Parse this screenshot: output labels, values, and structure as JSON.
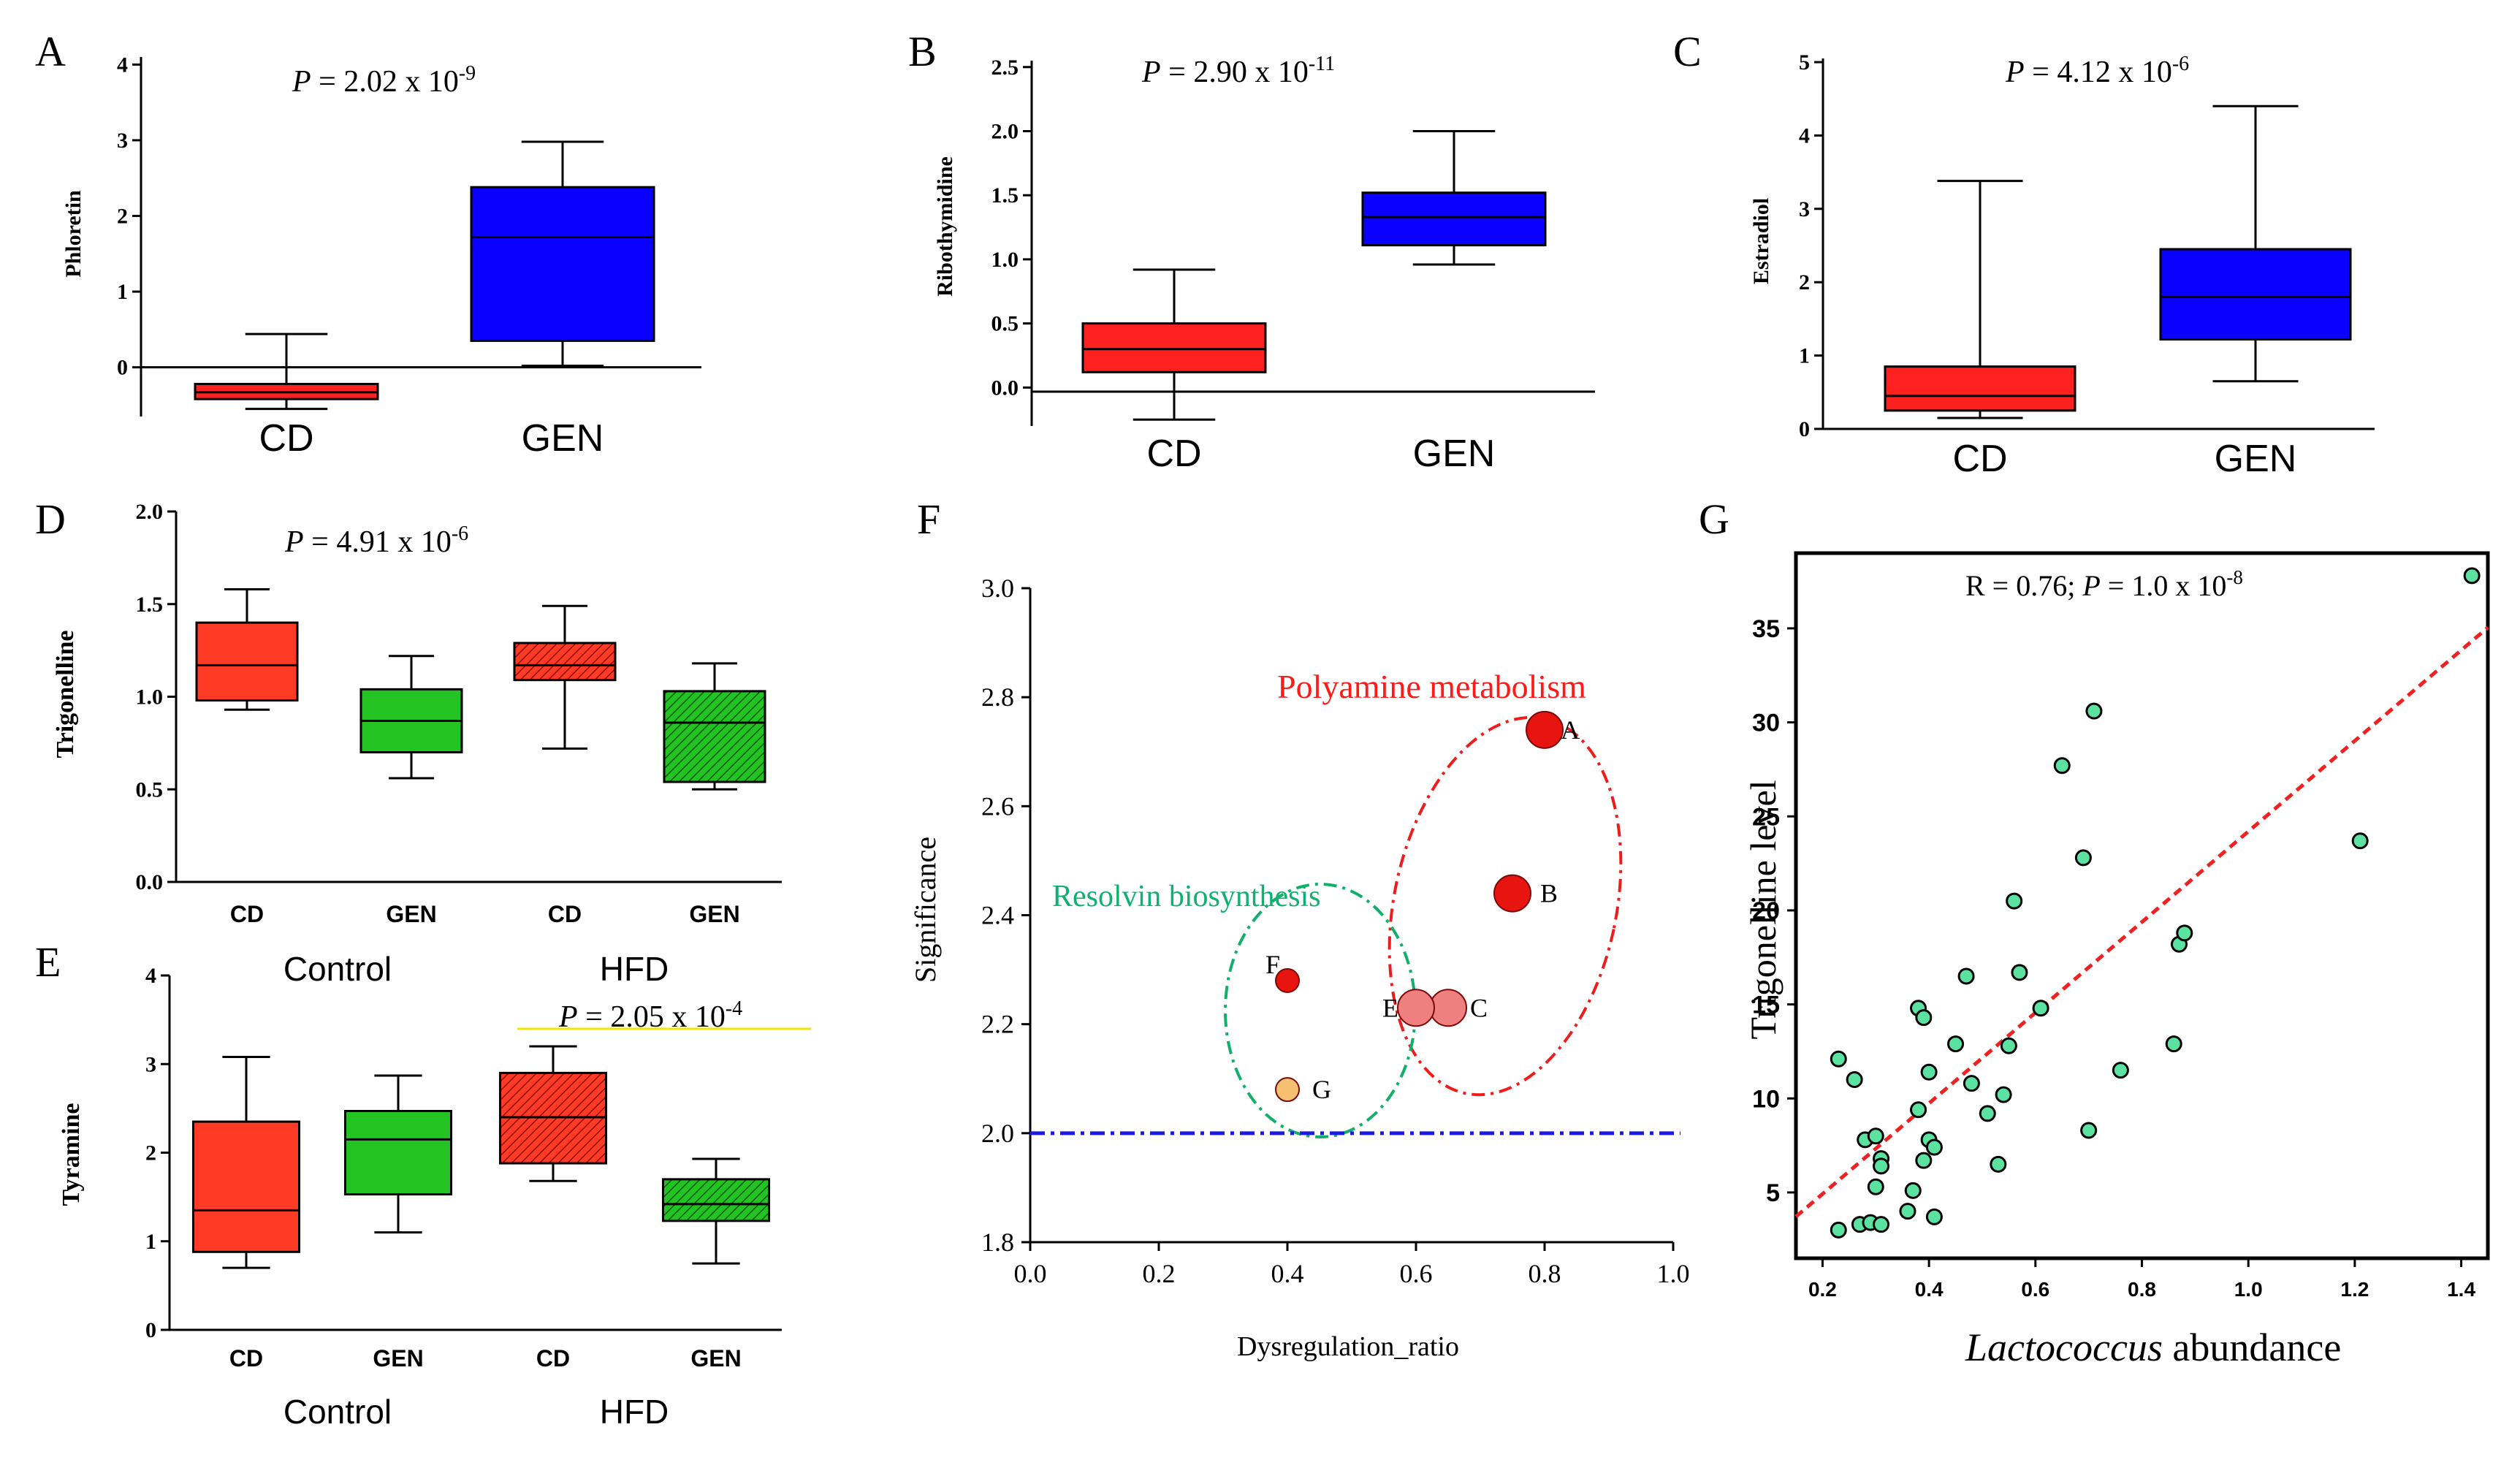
{
  "chart_data": [
    {
      "panel": "A",
      "type": "box",
      "ylabel": "Phloretin",
      "pvalue": {
        "prefix": "P",
        "text": " = 2.02 x 10",
        "exp": "-9"
      },
      "ylim": [
        -0.65,
        4.1
      ],
      "yticks": [
        0,
        1,
        2,
        3,
        4
      ],
      "categories": [
        "CD",
        "GEN"
      ],
      "boxes": [
        {
          "min": -0.55,
          "q1": -0.42,
          "median": -0.33,
          "q3": -0.22,
          "max": 0.44,
          "color": "#ff2020"
        },
        {
          "min": 0.02,
          "q1": 0.35,
          "median": 1.72,
          "q3": 2.38,
          "max": 2.98,
          "color": "#0a00ff"
        }
      ]
    },
    {
      "panel": "B",
      "type": "box",
      "ylabel": "Ribothymidine",
      "pvalue": {
        "prefix": "P",
        "text": " = 2.90 x 10",
        "exp": "-11"
      },
      "ylim": [
        -0.3,
        2.55
      ],
      "yticks": [
        0.0,
        0.5,
        1.0,
        1.5,
        2.0,
        2.5
      ],
      "tickDecimals": 1,
      "categories": [
        "CD",
        "GEN"
      ],
      "boxes": [
        {
          "min": -0.25,
          "q1": 0.12,
          "median": 0.3,
          "q3": 0.5,
          "max": 0.92,
          "color": "#ff2020"
        },
        {
          "min": 0.96,
          "q1": 1.11,
          "median": 1.33,
          "q3": 1.52,
          "max": 2.0,
          "color": "#0a00ff"
        }
      ]
    },
    {
      "panel": "C",
      "type": "box",
      "ylabel": "Estradiol",
      "pvalue": {
        "prefix": "P",
        "text": " = 4.12 x 10",
        "exp": "-6"
      },
      "ylim": [
        0,
        5.05
      ],
      "yticks": [
        0,
        1,
        2,
        3,
        4,
        5
      ],
      "categories": [
        "CD",
        "GEN"
      ],
      "boxes": [
        {
          "min": 0.15,
          "q1": 0.25,
          "median": 0.45,
          "q3": 0.85,
          "max": 3.38,
          "color": "#ff2020"
        },
        {
          "min": 0.65,
          "q1": 1.22,
          "median": 1.8,
          "q3": 2.45,
          "max": 4.4,
          "color": "#0a00ff"
        }
      ]
    },
    {
      "panel": "D",
      "type": "box",
      "ylabel": "Trigonelline",
      "pvalue": {
        "prefix": "P",
        "text": " = 4.91 x 10",
        "exp": "-6"
      },
      "ylim": [
        0,
        2.0
      ],
      "yticks": [
        0.0,
        0.5,
        1.0,
        1.5,
        2.0
      ],
      "tickDecimals": 1,
      "categories": [
        "CD",
        "GEN",
        "CD",
        "GEN"
      ],
      "groups": [
        "Control",
        "HFD"
      ],
      "boxes": [
        {
          "min": 0.93,
          "q1": 0.98,
          "median": 1.17,
          "q3": 1.4,
          "max": 1.58,
          "color": "#ff3b25",
          "hatch": false
        },
        {
          "min": 0.56,
          "q1": 0.7,
          "median": 0.87,
          "q3": 1.04,
          "max": 1.22,
          "color": "#22c322",
          "hatch": false
        },
        {
          "min": 0.72,
          "q1": 1.09,
          "median": 1.17,
          "q3": 1.29,
          "max": 1.49,
          "color": "#ff3b25",
          "hatch": true
        },
        {
          "min": 0.5,
          "q1": 0.54,
          "median": 0.86,
          "q3": 1.03,
          "max": 1.18,
          "color": "#22c322",
          "hatch": true
        }
      ]
    },
    {
      "panel": "E",
      "type": "box",
      "ylabel": "Tyramine",
      "pvalue": {
        "prefix": "P",
        "text": " = 2.05 x 10",
        "exp": "-4"
      },
      "ylim": [
        0,
        4.0
      ],
      "yticks": [
        0,
        1,
        2,
        3,
        4
      ],
      "categories": [
        "CD",
        "GEN",
        "CD",
        "GEN"
      ],
      "groups": [
        "Control",
        "HFD"
      ],
      "boxes": [
        {
          "min": 0.7,
          "q1": 0.88,
          "median": 1.35,
          "q3": 2.35,
          "max": 3.08,
          "color": "#ff3b25",
          "hatch": false
        },
        {
          "min": 1.1,
          "q1": 1.53,
          "median": 2.15,
          "q3": 2.47,
          "max": 2.87,
          "color": "#22c322",
          "hatch": false
        },
        {
          "min": 1.68,
          "q1": 1.88,
          "median": 2.4,
          "q3": 2.9,
          "max": 3.2,
          "color": "#ff3b25",
          "hatch": true
        },
        {
          "min": 0.75,
          "q1": 1.23,
          "median": 1.42,
          "q3": 1.7,
          "max": 1.93,
          "color": "#22c322",
          "hatch": true
        }
      ]
    },
    {
      "panel": "F",
      "type": "scatter",
      "xlabel": "Dysregulation_ratio",
      "ylabel": "Significance",
      "xlim": [
        0,
        1.0
      ],
      "ylim": [
        1.8,
        3.0
      ],
      "xticks": [
        0.0,
        0.2,
        0.4,
        0.6,
        0.8,
        1.0
      ],
      "yticks": [
        1.8,
        2.0,
        2.2,
        2.4,
        2.6,
        2.8,
        3.0
      ],
      "threshold": 2.0,
      "points": [
        {
          "label": "A",
          "x": 0.8,
          "y": 2.74,
          "color": "#e8140f",
          "size": "large"
        },
        {
          "label": "B",
          "x": 0.75,
          "y": 2.44,
          "color": "#e8140f",
          "size": "large"
        },
        {
          "label": "C",
          "x": 0.65,
          "y": 2.23,
          "color": "#f08080",
          "size": "large"
        },
        {
          "label": "E",
          "x": 0.6,
          "y": 2.23,
          "color": "#f08080",
          "size": "large"
        },
        {
          "label": "F",
          "x": 0.4,
          "y": 2.28,
          "color": "#e8140f",
          "size": "small"
        },
        {
          "label": "G",
          "x": 0.4,
          "y": 2.08,
          "color": "#f5c070",
          "size": "small"
        }
      ],
      "annotations": [
        "Polyamine  metabolism",
        "Resolvin biosynthesis"
      ]
    },
    {
      "panel": "G",
      "type": "scatter",
      "xlabel_italic": "Lactococcus",
      "xlabel_rest": " abundance",
      "ylabel": "Trigonelline  level",
      "stat": {
        "text": "R = 0.76; ",
        "prefix": "P",
        "rest": " = 1.0 x 10",
        "exp": "-8"
      },
      "xlim": [
        0.15,
        1.45
      ],
      "ylim": [
        1.5,
        39
      ],
      "xticks": [
        0.2,
        0.4,
        0.6,
        0.8,
        1.0,
        1.2,
        1.4
      ],
      "yticks": [
        5,
        10,
        15,
        20,
        25,
        30,
        35
      ],
      "fit": {
        "slope": 24.1,
        "intercept": 0.1
      },
      "points": [
        [
          0.23,
          3.0
        ],
        [
          0.27,
          3.3
        ],
        [
          0.29,
          3.4
        ],
        [
          0.31,
          3.3
        ],
        [
          0.23,
          12.1
        ],
        [
          0.26,
          11.0
        ],
        [
          0.28,
          7.8
        ],
        [
          0.3,
          8.0
        ],
        [
          0.3,
          5.3
        ],
        [
          0.31,
          6.8
        ],
        [
          0.31,
          6.4
        ],
        [
          0.36,
          4.0
        ],
        [
          0.37,
          5.1
        ],
        [
          0.38,
          9.4
        ],
        [
          0.38,
          14.8
        ],
        [
          0.39,
          14.3
        ],
        [
          0.39,
          6.7
        ],
        [
          0.4,
          11.4
        ],
        [
          0.4,
          7.8
        ],
        [
          0.41,
          7.4
        ],
        [
          0.41,
          3.7
        ],
        [
          0.45,
          12.9
        ],
        [
          0.47,
          16.5
        ],
        [
          0.48,
          10.8
        ],
        [
          0.51,
          9.2
        ],
        [
          0.53,
          6.5
        ],
        [
          0.54,
          10.2
        ],
        [
          0.55,
          12.8
        ],
        [
          0.56,
          20.5
        ],
        [
          0.57,
          16.7
        ],
        [
          0.61,
          14.8
        ],
        [
          0.65,
          27.7
        ],
        [
          0.69,
          22.8
        ],
        [
          0.7,
          8.3
        ],
        [
          0.71,
          30.6
        ],
        [
          0.76,
          11.5
        ],
        [
          0.86,
          12.9
        ],
        [
          0.87,
          18.2
        ],
        [
          0.88,
          18.8
        ],
        [
          1.21,
          23.7
        ],
        [
          1.42,
          37.8
        ]
      ]
    }
  ]
}
